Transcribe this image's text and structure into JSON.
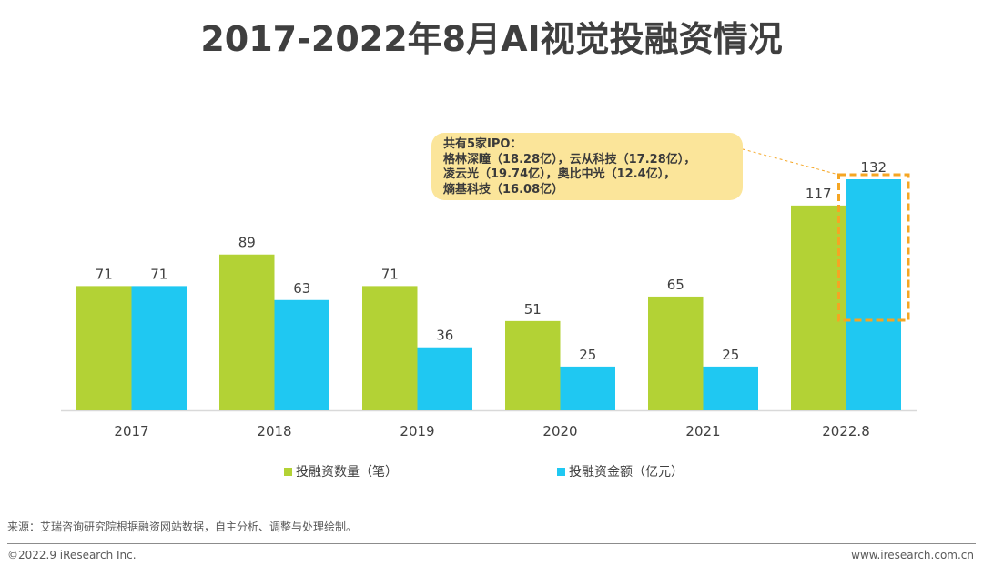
{
  "page": {
    "title": "2017-2022年8月AI视觉投融资情况",
    "source": "来源：艾瑞咨询研究院根据融资网站数据，自主分析、调整与处理绘制。",
    "copyright": "©2022.9 iResearch Inc.",
    "website": "www.iresearch.com.cn"
  },
  "callout": {
    "lines": [
      "共有5家IPO：",
      "格林深瞳（18.28亿），云从科技（17.28亿），",
      "凌云光（19.74亿），奥比中光（12.4亿），",
      "熵基科技（16.08亿）"
    ],
    "highlight_category": "2022.8",
    "highlight_series": "投融资金额（亿元）",
    "fill_color": "#fbe59a",
    "border_color": "#f5a623"
  },
  "chart_data": {
    "type": "bar",
    "title": "2017-2022年8月AI视觉投融资情况",
    "xlabel": "",
    "ylabel": "",
    "categories": [
      "2017",
      "2018",
      "2019",
      "2020",
      "2021",
      "2022.8"
    ],
    "series": [
      {
        "name": "投融资数量（笔）",
        "color": "#b3d235",
        "values": [
          71,
          89,
          71,
          51,
          65,
          117
        ]
      },
      {
        "name": "投融资金额（亿元）",
        "color": "#1fc8f2",
        "values": [
          71,
          63,
          36,
          25,
          25,
          132
        ]
      }
    ],
    "ylim": [
      0,
      132
    ],
    "grid": false,
    "data_labels": true,
    "legend_position": "bottom"
  }
}
